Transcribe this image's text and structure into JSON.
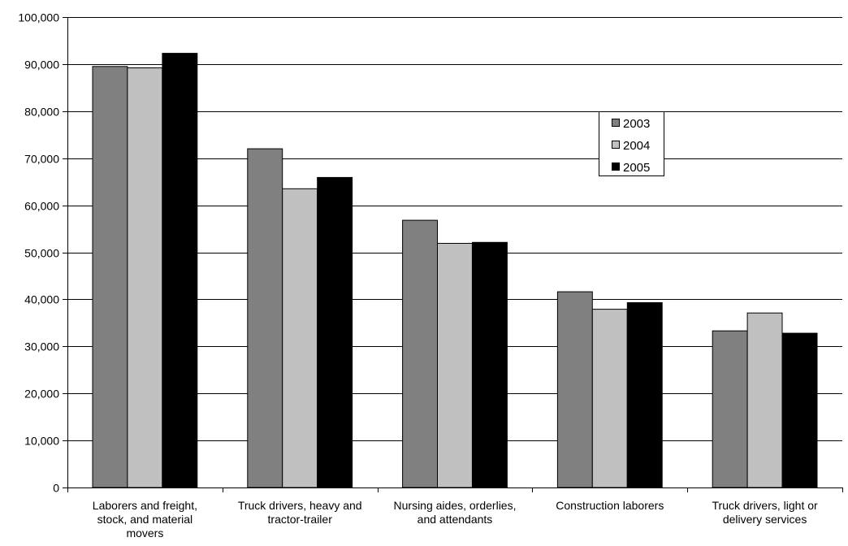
{
  "chart_data": {
    "type": "bar",
    "categories": [
      [
        "Laborers and freight,",
        "stock, and material",
        "movers"
      ],
      [
        "Truck drivers, heavy and",
        "tractor-trailer"
      ],
      [
        "Nursing aides, orderlies,",
        "and attendants"
      ],
      [
        "Construction laborers"
      ],
      [
        "Truck drivers, light or",
        "delivery services"
      ]
    ],
    "series": [
      {
        "name": "2003",
        "color": "#808080",
        "values": [
          89500,
          72000,
          56800,
          41600,
          33300
        ]
      },
      {
        "name": "2004",
        "color": "#c0c0c0",
        "values": [
          89200,
          63500,
          51900,
          37900,
          37100
        ]
      },
      {
        "name": "2005",
        "color": "#000000",
        "values": [
          92300,
          65900,
          52100,
          39300,
          32800
        ]
      }
    ],
    "ylim": [
      0,
      100000
    ],
    "yticks": [
      "0",
      "10,000",
      "20,000",
      "30,000",
      "40,000",
      "50,000",
      "60,000",
      "70,000",
      "80,000",
      "90,000",
      "100,000"
    ],
    "grid": true,
    "legend": "right, upper middle"
  }
}
